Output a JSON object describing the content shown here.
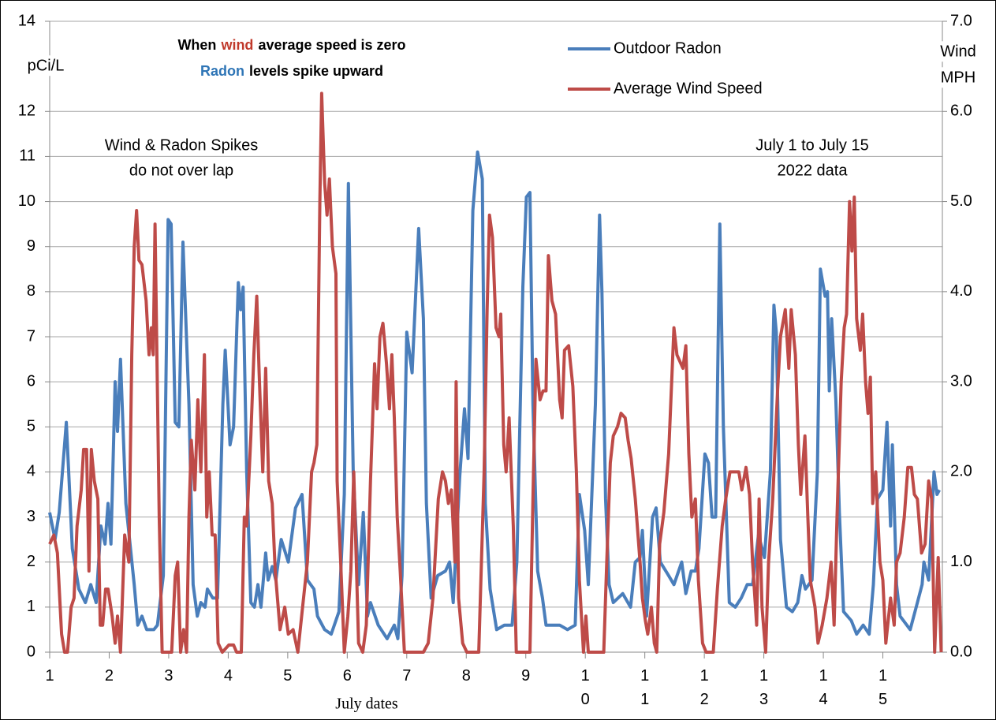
{
  "chart_data": {
    "type": "line",
    "annotation_lines": [
      [
        {
          "text": "When",
          "color": "#000000"
        },
        {
          "text": "wind",
          "color": "#c0392b"
        },
        {
          "text": "average speed is zero",
          "color": "#000000"
        }
      ],
      [
        {
          "text": "Radon",
          "color": "#2e75b6"
        },
        {
          "text": "levels spike upward",
          "color": "#000000"
        }
      ]
    ],
    "y_label": "pCi/L",
    "y2_label": [
      "Wind",
      "MPH"
    ],
    "notes": [
      [
        "Wind & Radon Spikes",
        "do not over lap"
      ],
      [
        "July 1 to July 15",
        "2022 data"
      ]
    ],
    "x_label": "July dates",
    "xlim": [
      1,
      16
    ],
    "xticks": [
      1,
      2,
      3,
      4,
      5,
      6,
      7,
      8,
      9,
      10,
      11,
      12,
      13,
      14,
      15
    ],
    "ylim": [
      0,
      14
    ],
    "yticks": [
      0,
      1,
      2,
      3,
      4,
      5,
      6,
      7,
      8,
      9,
      10,
      11,
      12,
      14
    ],
    "y2lim": [
      0,
      7
    ],
    "y2ticks": [
      {
        "value": 0,
        "label": "0.0"
      },
      {
        "value": 1,
        "label": "1.0"
      },
      {
        "value": 2,
        "label": "2.0"
      },
      {
        "value": 3,
        "label": "3.0"
      },
      {
        "value": 4,
        "label": "4.0"
      },
      {
        "value": 5,
        "label": "5.0"
      },
      {
        "value": 6,
        "label": "6.0"
      },
      {
        "value": 7,
        "label": "7.0"
      }
    ],
    "grid": true,
    "series": [
      {
        "name": "Outdoor Radon",
        "color": "#4a7ebb",
        "x": [
          1.0,
          1.09,
          1.16,
          1.28,
          1.38,
          1.49,
          1.6,
          1.69,
          1.78,
          1.86,
          1.93,
          1.98,
          2.03,
          2.1,
          2.14,
          2.19,
          2.28,
          2.42,
          2.48,
          2.55,
          2.63,
          2.75,
          2.81,
          2.91,
          2.99,
          3.04,
          3.11,
          3.17,
          3.24,
          3.34,
          3.41,
          3.48,
          3.54,
          3.61,
          3.65,
          3.74,
          3.82,
          3.91,
          3.95,
          4.03,
          4.09,
          4.17,
          4.21,
          4.25,
          4.31,
          4.38,
          4.44,
          4.5,
          4.55,
          4.63,
          4.67,
          4.74,
          4.8,
          4.89,
          5.01,
          5.13,
          5.24,
          5.33,
          5.44,
          5.5,
          5.62,
          5.73,
          5.86,
          5.95,
          6.02,
          6.1,
          6.19,
          6.27,
          6.34,
          6.39,
          6.52,
          6.67,
          6.79,
          6.85,
          6.92,
          7.0,
          7.09,
          7.2,
          7.28,
          7.33,
          7.41,
          7.52,
          7.65,
          7.72,
          7.78,
          7.89,
          7.97,
          8.03,
          8.11,
          8.19,
          8.27,
          8.32,
          8.4,
          8.51,
          8.64,
          8.77,
          8.85,
          8.95,
          9.01,
          9.07,
          9.12,
          9.2,
          9.28,
          9.34,
          9.57,
          9.7,
          9.83,
          9.9,
          9.99,
          10.05,
          10.17,
          10.24,
          10.28,
          10.34,
          10.4,
          10.47,
          10.63,
          10.76,
          10.84,
          10.92,
          10.96,
          11.03,
          11.13,
          11.19,
          11.26,
          11.4,
          11.49,
          11.62,
          11.69,
          11.78,
          11.85,
          11.91,
          12.01,
          12.07,
          12.13,
          12.19,
          12.26,
          12.32,
          12.42,
          12.52,
          12.62,
          12.72,
          12.81,
          12.91,
          13.01,
          13.11,
          13.17,
          13.21,
          13.28,
          13.38,
          13.48,
          13.57,
          13.64,
          13.7,
          13.81,
          13.9,
          13.95,
          14.03,
          14.07,
          14.1,
          14.14,
          14.21,
          14.27,
          14.34,
          14.47,
          14.56,
          14.67,
          14.77,
          14.84,
          14.91,
          15.0,
          15.07,
          15.13,
          15.16,
          15.23,
          15.29,
          15.46,
          15.56,
          15.66,
          15.69,
          15.77,
          15.86,
          15.91,
          15.95
        ],
        "values": [
          3.1,
          2.5,
          3.1,
          5.1,
          2.3,
          1.4,
          1.1,
          1.5,
          1.1,
          2.8,
          2.4,
          3.3,
          2.4,
          6.0,
          4.9,
          6.5,
          3.3,
          1.5,
          0.6,
          0.8,
          0.5,
          0.5,
          0.6,
          1.7,
          9.6,
          9.5,
          5.1,
          5.0,
          9.1,
          5.5,
          1.5,
          0.8,
          1.1,
          1.0,
          1.4,
          1.2,
          1.2,
          5.5,
          6.7,
          4.6,
          5.0,
          8.2,
          7.6,
          8.1,
          4.0,
          1.1,
          1.0,
          1.5,
          1.0,
          2.2,
          1.6,
          1.9,
          1.6,
          2.5,
          2.0,
          3.2,
          3.5,
          1.6,
          1.4,
          0.8,
          0.5,
          0.4,
          0.9,
          3.5,
          10.4,
          4.0,
          1.5,
          3.1,
          0.8,
          1.1,
          0.6,
          0.3,
          0.6,
          0.3,
          1.7,
          7.1,
          6.2,
          9.4,
          7.4,
          3.3,
          1.2,
          1.7,
          1.8,
          2.0,
          1.1,
          3.9,
          5.4,
          4.3,
          9.8,
          11.1,
          10.5,
          3.3,
          1.4,
          0.5,
          0.6,
          0.6,
          2.0,
          8.1,
          10.1,
          10.2,
          5.5,
          1.8,
          1.2,
          0.6,
          0.6,
          0.5,
          0.6,
          3.5,
          2.7,
          1.5,
          5.5,
          9.7,
          8.0,
          3.4,
          1.5,
          1.1,
          1.3,
          1.0,
          2.0,
          2.1,
          2.7,
          0.8,
          3.0,
          3.2,
          2.0,
          1.7,
          1.5,
          2.0,
          1.3,
          1.8,
          1.8,
          2.3,
          4.4,
          4.2,
          3.0,
          3.0,
          9.5,
          5.0,
          1.1,
          1.0,
          1.2,
          1.5,
          1.5,
          2.6,
          2.1,
          4.0,
          7.7,
          7.1,
          2.5,
          1.0,
          0.9,
          1.1,
          1.7,
          1.4,
          1.6,
          4.0,
          8.5,
          7.9,
          8.0,
          5.8,
          7.4,
          5.6,
          3.1,
          0.9,
          0.7,
          0.4,
          0.6,
          0.4,
          1.5,
          3.4,
          3.6,
          5.1,
          2.8,
          4.6,
          1.5,
          0.8,
          0.5,
          1.0,
          1.5,
          2.0,
          1.6,
          4.0,
          3.5,
          3.6
        ]
      },
      {
        "name": "Average Wind Speed",
        "color": "#be4b48",
        "axis": "y2",
        "x": [
          1.0,
          1.07,
          1.13,
          1.2,
          1.25,
          1.3,
          1.36,
          1.41,
          1.46,
          1.53,
          1.57,
          1.62,
          1.66,
          1.7,
          1.75,
          1.81,
          1.85,
          1.89,
          1.94,
          1.98,
          2.05,
          2.1,
          2.14,
          2.19,
          2.26,
          2.33,
          2.38,
          2.42,
          2.46,
          2.5,
          2.55,
          2.62,
          2.67,
          2.71,
          2.74,
          2.77,
          2.84,
          2.89,
          2.99,
          3.05,
          3.11,
          3.15,
          3.2,
          3.25,
          3.3,
          3.34,
          3.38,
          3.44,
          3.49,
          3.54,
          3.6,
          3.64,
          3.68,
          3.73,
          3.78,
          3.83,
          3.9,
          3.97,
          4.01,
          4.09,
          4.14,
          4.22,
          4.27,
          4.31,
          4.38,
          4.43,
          4.48,
          4.52,
          4.58,
          4.63,
          4.68,
          4.74,
          4.79,
          4.87,
          4.95,
          5.01,
          5.09,
          5.17,
          5.25,
          5.33,
          5.4,
          5.44,
          5.49,
          5.54,
          5.57,
          5.62,
          5.66,
          5.7,
          5.75,
          5.81,
          5.83,
          5.89,
          5.95,
          6.01,
          6.06,
          6.11,
          6.19,
          6.26,
          6.32,
          6.39,
          6.46,
          6.5,
          6.55,
          6.6,
          6.66,
          6.71,
          6.75,
          6.79,
          6.84,
          6.89,
          6.96,
          7.19,
          7.28,
          7.36,
          7.44,
          7.53,
          7.6,
          7.65,
          7.7,
          7.75,
          7.81,
          7.83,
          7.87,
          7.94,
          8.01,
          8.11,
          8.21,
          8.3,
          8.35,
          8.39,
          8.44,
          8.5,
          8.55,
          8.58,
          8.63,
          8.67,
          8.72,
          8.79,
          8.84,
          9.01,
          9.07,
          9.12,
          9.17,
          9.24,
          9.29,
          9.34,
          9.38,
          9.44,
          9.5,
          9.57,
          9.61,
          9.65,
          9.72,
          9.79,
          9.85,
          9.9,
          9.97,
          10.01,
          10.05,
          10.11,
          10.18,
          10.31,
          10.36,
          10.42,
          10.47,
          10.54,
          10.6,
          10.67,
          10.72,
          10.77,
          10.84,
          10.92,
          10.96,
          11.01,
          11.05,
          11.11,
          11.16,
          11.2,
          11.25,
          11.32,
          11.4,
          11.49,
          11.54,
          11.64,
          11.69,
          11.74,
          11.79,
          11.85,
          11.9,
          11.97,
          12.03,
          12.15,
          12.22,
          12.3,
          12.36,
          12.43,
          12.51,
          12.58,
          12.63,
          12.7,
          12.76,
          12.81,
          12.88,
          12.92,
          12.97,
          13.03,
          13.08,
          13.15,
          13.23,
          13.28,
          13.36,
          13.42,
          13.46,
          13.53,
          13.58,
          13.62,
          13.69,
          13.74,
          13.78,
          13.86,
          13.91,
          13.98,
          14.06,
          14.13,
          14.18,
          14.23,
          14.3,
          14.35,
          14.39,
          14.44,
          14.48,
          14.52,
          14.56,
          14.62,
          14.66,
          14.71,
          14.75,
          14.79,
          14.83,
          14.88,
          14.95,
          15.0,
          15.05,
          15.13,
          15.19,
          15.23,
          15.29,
          15.36,
          15.42,
          15.48,
          15.53,
          15.58,
          15.65,
          15.71,
          15.77,
          15.82,
          15.87,
          15.93,
          15.98
        ],
        "values": [
          1.2,
          1.3,
          1.1,
          0.2,
          0.0,
          0.0,
          0.5,
          0.6,
          1.4,
          1.8,
          2.25,
          2.25,
          0.9,
          2.25,
          1.9,
          1.7,
          0.3,
          0.3,
          0.7,
          0.7,
          0.4,
          0.1,
          0.4,
          0.0,
          1.3,
          1.0,
          3.3,
          4.5,
          4.9,
          4.35,
          4.3,
          3.9,
          3.3,
          3.6,
          3.3,
          4.75,
          1.5,
          0.0,
          0.0,
          0.0,
          0.85,
          1.0,
          0.0,
          0.25,
          0.0,
          1.5,
          2.35,
          1.8,
          2.8,
          2.0,
          3.3,
          1.5,
          2.0,
          1.3,
          1.3,
          0.1,
          0.0,
          0.05,
          0.08,
          0.08,
          0.0,
          0.0,
          1.5,
          1.4,
          2.4,
          3.3,
          3.95,
          3.1,
          2.0,
          3.15,
          1.9,
          1.65,
          0.9,
          0.25,
          0.5,
          0.2,
          0.25,
          0.0,
          0.5,
          1.0,
          2.0,
          2.1,
          2.3,
          5.0,
          6.2,
          5.2,
          4.85,
          5.25,
          4.5,
          4.2,
          1.9,
          1.0,
          0.0,
          0.4,
          0.9,
          2.0,
          0.1,
          0.0,
          0.3,
          1.9,
          3.2,
          2.7,
          3.5,
          3.65,
          3.2,
          2.7,
          3.3,
          2.6,
          1.5,
          0.9,
          0.0,
          0.0,
          0.0,
          0.1,
          0.6,
          1.7,
          2.0,
          1.9,
          1.65,
          1.8,
          1.0,
          3.0,
          0.6,
          0.1,
          0.0,
          0.0,
          0.0,
          2.0,
          3.8,
          4.85,
          4.6,
          3.6,
          3.5,
          3.75,
          2.3,
          2.0,
          2.6,
          1.4,
          0.0,
          0.0,
          0.0,
          1.7,
          3.25,
          2.8,
          2.9,
          2.9,
          4.4,
          3.9,
          3.75,
          2.8,
          2.6,
          3.35,
          3.4,
          2.95,
          2.0,
          0.8,
          0.0,
          0.4,
          0.0,
          0.0,
          0.0,
          0.0,
          1.0,
          2.1,
          2.4,
          2.5,
          2.65,
          2.6,
          2.35,
          2.15,
          1.7,
          1.0,
          0.6,
          0.35,
          0.2,
          0.5,
          0.1,
          0.0,
          1.2,
          1.55,
          2.2,
          3.6,
          3.3,
          3.15,
          3.4,
          2.2,
          1.5,
          1.7,
          0.8,
          0.1,
          0.0,
          0.0,
          0.7,
          1.4,
          1.7,
          2.0,
          2.0,
          2.0,
          1.8,
          2.05,
          1.75,
          1.0,
          0.3,
          1.7,
          0.5,
          0.0,
          1.0,
          1.7,
          2.9,
          3.5,
          3.8,
          3.15,
          3.8,
          3.3,
          2.3,
          1.75,
          2.4,
          1.5,
          0.8,
          0.5,
          0.1,
          0.3,
          0.6,
          1.0,
          0.3,
          1.5,
          3.0,
          3.6,
          3.75,
          5.0,
          4.45,
          5.05,
          3.7,
          3.35,
          3.75,
          3.0,
          2.65,
          3.05,
          1.65,
          2.0,
          1.0,
          0.8,
          0.1,
          0.6,
          0.3,
          1.0,
          1.1,
          1.5,
          2.05,
          2.05,
          1.75,
          1.7,
          1.1,
          1.2,
          1.9,
          1.7,
          0.0,
          1.05,
          0.0
        ]
      }
    ]
  }
}
